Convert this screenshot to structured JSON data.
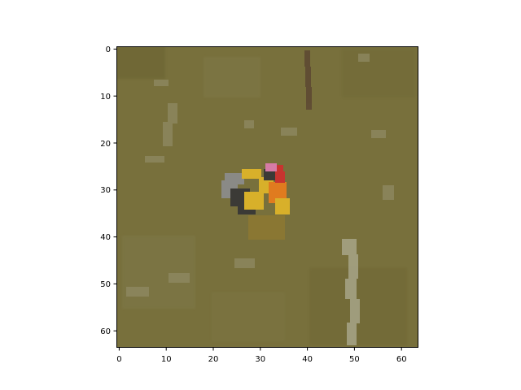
{
  "figure": {
    "image_description": "pixelated 64x64 photo of a duck swimming in murky olive-green water",
    "x_ticks": [
      "0",
      "10",
      "20",
      "30",
      "40",
      "50",
      "60"
    ],
    "y_ticks": [
      "0",
      "10",
      "20",
      "30",
      "40",
      "50",
      "60"
    ],
    "colors": {
      "water": "#78703c",
      "water_dark": "#6a6433",
      "ripple": "#8f8a63",
      "ripple_light": "#a7a588",
      "duck_yellow": "#d8b02a",
      "duck_orange": "#e07b1f",
      "duck_red": "#c8342f",
      "duck_pink": "#d67ba6",
      "duck_dark": "#3b3a36",
      "duck_grey": "#8a8a86",
      "reed": "#5e4a33"
    }
  }
}
